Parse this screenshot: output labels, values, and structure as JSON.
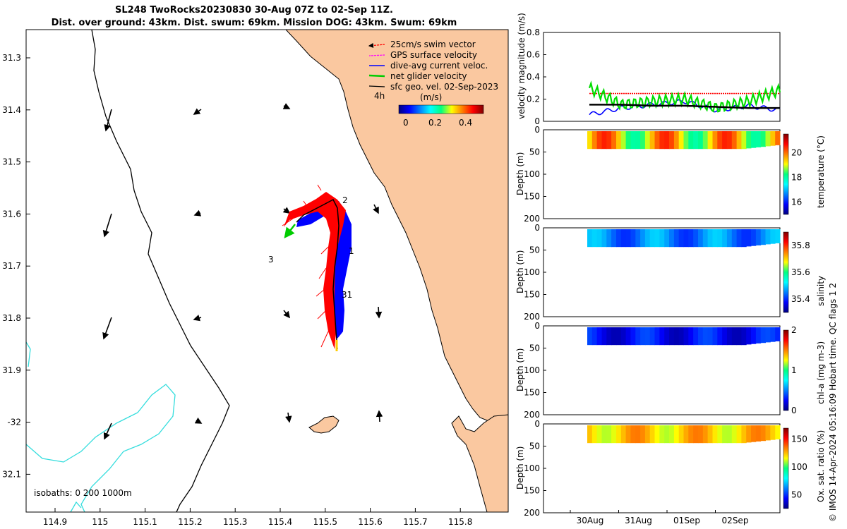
{
  "title": {
    "line1": "SL248 TwoRocks20230830 30-Aug 07Z to 02-Sep 11Z.",
    "line2": "Dist. over ground: 43km. Dist. swum: 69km. Mission DOG: 43km. Swum: 69km"
  },
  "map": {
    "lon_ticks": [
      "114.9",
      "115",
      "115.1",
      "115.2",
      "115.3",
      "115.4",
      "115.5",
      "115.6",
      "115.7",
      "115.8"
    ],
    "lat_ticks": [
      "31.3",
      "31.4",
      "31.5",
      "31.6",
      "31.7",
      "31.8",
      "31.9",
      "-32",
      "32.1"
    ],
    "legend": [
      {
        "label": "25cm/s swim vector",
        "color": "#ff0000"
      },
      {
        "label": "GPS surface velocity",
        "color": "#ff00ff"
      },
      {
        "label": "dive-avg current veloc.",
        "color": "#0000ff"
      },
      {
        "label": "net glider velocity",
        "color": "#00dd00"
      },
      {
        "label": "sfc geo. vel. 02-Sep-2023",
        "color": "#000000"
      }
    ],
    "scale_label": "4h",
    "colorbar_unit": "(m/s)",
    "colorbar_ticks": [
      "0",
      "0.2",
      "0.4"
    ],
    "track_labels": [
      "2",
      "1",
      "31",
      "3"
    ],
    "isobath_label": "isobaths: 0   200  1000m",
    "colors": {
      "land": "#fac8a0",
      "isobath": "#33dddd",
      "track_fwd": "#ff0000",
      "track_back": "#0000ff",
      "net": "#00cc00"
    }
  },
  "chart_data": [
    {
      "type": "line",
      "title": "",
      "ylabel": "velocity magnitude (m/s)",
      "ylim": [
        0,
        0.8
      ],
      "yticks": [
        "0",
        "0.2",
        "0.4",
        "0.6",
        "0.8"
      ],
      "x": [
        "30Aug 12Z",
        "31Aug 00Z",
        "31Aug 12Z",
        "01Sep 00Z",
        "01Sep 12Z",
        "02Sep 00Z",
        "02Sep 12Z"
      ],
      "series": [
        {
          "name": "swim speed",
          "color": "#ff0000",
          "values": [
            0.25,
            0.25,
            0.25,
            0.25,
            0.25,
            0.25,
            0.25
          ]
        },
        {
          "name": "dive-avg current",
          "color": "#0000ff",
          "values": [
            0.06,
            0.12,
            0.15,
            0.18,
            0.1,
            0.14,
            0.1
          ]
        },
        {
          "name": "net glider velocity",
          "color": "#00dd00",
          "values": [
            0.3,
            0.15,
            0.18,
            0.2,
            0.12,
            0.18,
            0.28
          ]
        },
        {
          "name": "sfc geo. vel.",
          "color": "#000000",
          "values": [
            0.15,
            0.15,
            0.14,
            0.14,
            0.13,
            0.12,
            0.12
          ]
        }
      ]
    },
    {
      "type": "heatmap",
      "ylabel": "Depth (m)",
      "cbar_label": "temperature (°C)",
      "ylim": [
        200,
        0
      ],
      "yticks": [
        "0",
        "50",
        "100",
        "150",
        "200"
      ],
      "cbar_ticks": [
        "16",
        "18",
        "20"
      ],
      "cbar_range": [
        15,
        21.5
      ],
      "values_range": [
        18,
        20.5
      ]
    },
    {
      "type": "heatmap",
      "ylabel": "Depth (m)",
      "cbar_label": "salinity",
      "ylim": [
        200,
        0
      ],
      "yticks": [
        "0",
        "50",
        "100",
        "150",
        "200"
      ],
      "cbar_ticks": [
        "35.4",
        "35.6",
        "35.8"
      ],
      "cbar_range": [
        35.3,
        35.9
      ],
      "values_range": [
        35.4,
        35.5
      ]
    },
    {
      "type": "heatmap",
      "ylabel": "Depth (m)",
      "cbar_label": "chl-a (mg m-3)",
      "ylim": [
        200,
        0
      ],
      "yticks": [
        "0",
        "50",
        "100",
        "150",
        "200"
      ],
      "cbar_ticks": [
        "0",
        "1",
        "2"
      ],
      "cbar_range": [
        0,
        2
      ],
      "values_range": [
        0.1,
        0.4
      ]
    },
    {
      "type": "heatmap",
      "ylabel": "Depth (m)",
      "cbar_label": "Ox. sat. ratio (%)",
      "ylim": [
        200,
        0
      ],
      "yticks": [
        "0",
        "50",
        "100",
        "150",
        "200"
      ],
      "cbar_ticks": [
        "50",
        "100",
        "150"
      ],
      "cbar_range": [
        25,
        170
      ],
      "values_range": [
        110,
        135
      ]
    }
  ],
  "time_axis": [
    "30Aug",
    "31Aug",
    "01Sep",
    "02Sep"
  ],
  "credit": "© IMOS 14-Apr-2024 05:16:09 Hobart time. QC flags 1  2"
}
